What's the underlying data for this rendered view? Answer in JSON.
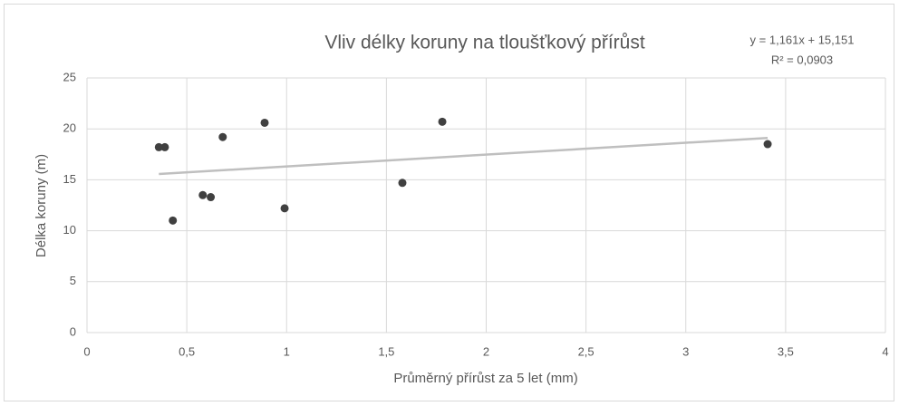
{
  "chart_data": {
    "type": "scatter",
    "title": "Vliv délky koruny na tloušťkový přírůst",
    "x_label": "Průměrný přírůst za 5 let (mm)",
    "y_label": "Délka koruny (m)",
    "series": [
      {
        "color": "#404040",
        "x": [
          0.36,
          0.39,
          0.43,
          0.58,
          0.62,
          0.68,
          0.89,
          0.99,
          1.58,
          1.78,
          3.41
        ],
        "values": [
          18.2,
          18.2,
          11.0,
          13.5,
          13.3,
          19.2,
          20.6,
          12.2,
          14.7,
          20.7,
          18.5
        ]
      }
    ],
    "trendline": {
      "equation": "y = 1,161x + 15,151",
      "r2": "R² = 0,0903",
      "slope": 1.161,
      "intercept": 15.151,
      "color": "#bfbfbf"
    },
    "xlim": [
      0,
      4
    ],
    "xticks": [
      0,
      {
        "value": 0.5,
        "label": "0,5"
      },
      1,
      {
        "value": 1.5,
        "label": "1,5"
      },
      2,
      {
        "value": 2.5,
        "label": "2,5"
      },
      3,
      {
        "value": 3.5,
        "label": "3,5"
      },
      4
    ],
    "ylim": [
      0,
      25
    ],
    "yticks": [
      0,
      5,
      10,
      15,
      20,
      25
    ],
    "grid": true
  }
}
